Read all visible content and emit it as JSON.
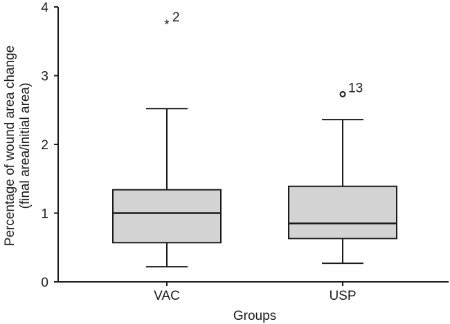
{
  "chart_data": {
    "type": "boxplot",
    "title": "",
    "xlabel": "Groups",
    "ylabel_lines": [
      "Percentage of wound area change",
      "(final area/initial area)"
    ],
    "ylim": [
      0,
      4
    ],
    "yticks": [
      "0",
      "1",
      "2",
      "3",
      "4"
    ],
    "categories": [
      "VAC",
      "USP"
    ],
    "box_fill": "#d3d3d3",
    "line_color": "#1a1a1a",
    "boxes": [
      {
        "group": "VAC",
        "whisker_low": 0.22,
        "q1": 0.57,
        "median": 1.0,
        "q3": 1.34,
        "whisker_high": 2.52,
        "outliers": [
          {
            "value": 3.77,
            "marker": "star",
            "label": "2"
          }
        ]
      },
      {
        "group": "USP",
        "whisker_low": 0.27,
        "q1": 0.63,
        "median": 0.85,
        "q3": 1.39,
        "whisker_high": 2.36,
        "outliers": [
          {
            "value": 2.73,
            "marker": "circle",
            "label": "13"
          }
        ]
      }
    ]
  }
}
